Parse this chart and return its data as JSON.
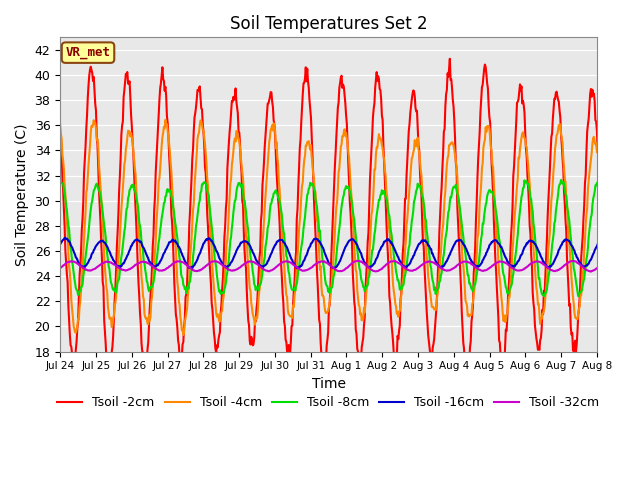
{
  "title": "Soil Temperatures Set 2",
  "xlabel": "Time",
  "ylabel": "Soil Temperature (C)",
  "ylim": [
    18,
    43
  ],
  "yticks": [
    18,
    20,
    22,
    24,
    26,
    28,
    30,
    32,
    34,
    36,
    38,
    40,
    42
  ],
  "annotation_text": "VR_met",
  "annotation_bbox_facecolor": "#FFFF99",
  "annotation_bbox_edgecolor": "#8B4513",
  "background_color": "#E8E8E8",
  "series_names": [
    "Tsoil -2cm",
    "Tsoil -4cm",
    "Tsoil -8cm",
    "Tsoil -16cm",
    "Tsoil -32cm"
  ],
  "series_colors": [
    "#FF0000",
    "#FF8800",
    "#00DD00",
    "#0000CC",
    "#CC00CC"
  ],
  "series_lw": [
    1.5,
    1.5,
    1.5,
    1.5,
    1.5
  ],
  "xtick_labels": [
    "Jul 24",
    "Jul 25",
    "Jul 26",
    "Jul 27",
    "Jul 28",
    "Jul 29",
    "Jul 30",
    "Jul 31",
    "Aug 1",
    "Aug 2",
    "Aug 3",
    "Aug 4",
    "Aug 5",
    "Aug 6",
    "Aug 7",
    "Aug 8"
  ],
  "n_days": 16,
  "pts_per_day": 48,
  "params": {
    "Tsoil -2cm": {
      "mean": 28.5,
      "amp": 11.0,
      "phase": 0.0,
      "lag": 0.0
    },
    "Tsoil -4cm": {
      "mean": 28.0,
      "amp": 7.5,
      "phase": 0.0,
      "lag": 0.07
    },
    "Tsoil -8cm": {
      "mean": 27.0,
      "amp": 4.2,
      "phase": 0.0,
      "lag": 0.15
    },
    "Tsoil -16cm": {
      "mean": 25.8,
      "amp": 1.1,
      "phase": 0.0,
      "lag": 0.28
    },
    "Tsoil -32cm": {
      "mean": 24.8,
      "amp": 0.38,
      "phase": 0.0,
      "lag": 0.45
    }
  }
}
